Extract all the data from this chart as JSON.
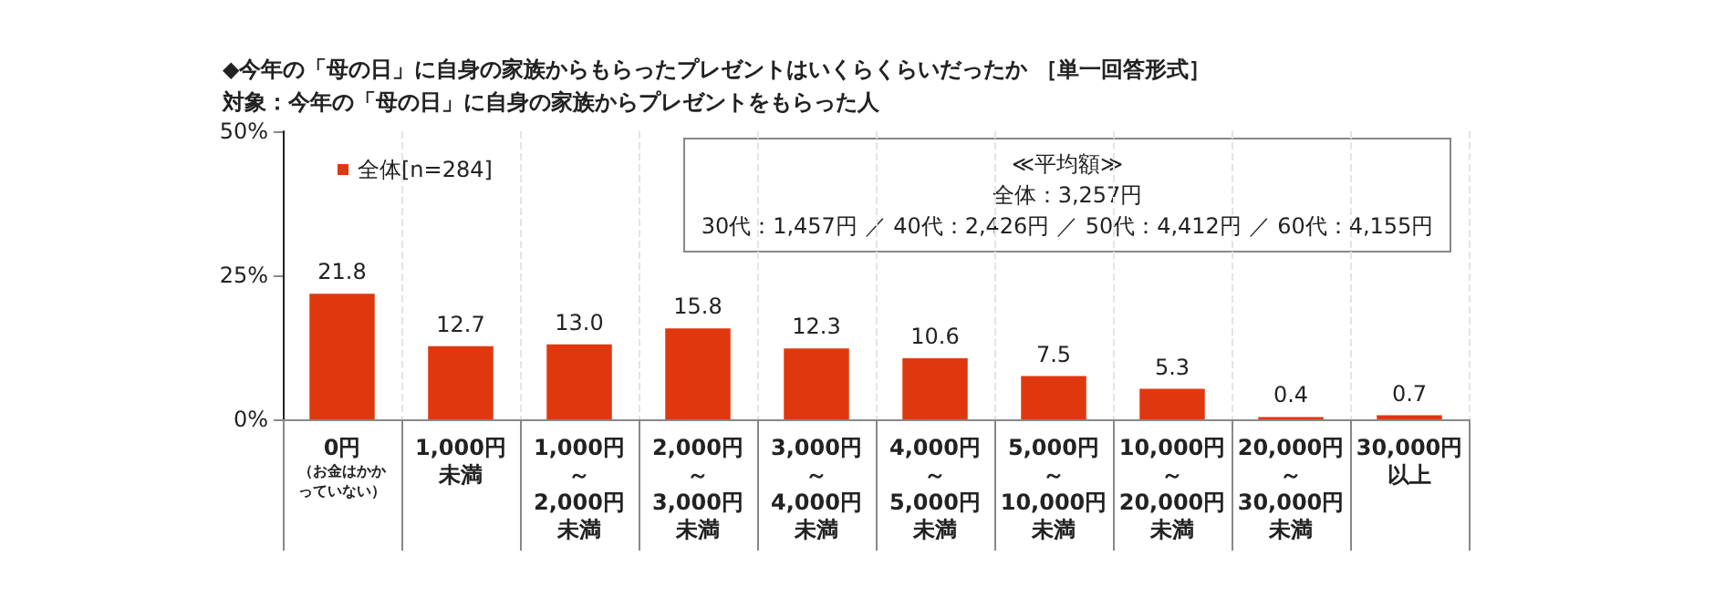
{
  "chart_data": {
    "type": "bar",
    "title": "◆今年の「母の日」に自身の家族からもらったプレゼントはいくらくらいだったか ［単一回答形式］",
    "subtitle": "対象：今年の「母の日」に自身の家族からプレゼントをもらった人",
    "categories": [
      "0円（お金はかかっていない）",
      "1,000円未満",
      "1,000円～2,000円未満",
      "2,000円～3,000円未満",
      "3,000円～4,000円未満",
      "4,000円～5,000円未満",
      "5,000円～10,000円未満",
      "10,000円～20,000円未満",
      "20,000円～30,000円未満",
      "30,000円以上"
    ],
    "series": [
      {
        "name": "全体[n=284]",
        "color": "#e0380e",
        "values": [
          21.8,
          12.7,
          13.0,
          15.8,
          12.3,
          10.6,
          7.5,
          5.3,
          0.4,
          0.7
        ],
        "value_labels": [
          "21.8",
          "12.7",
          "13.0",
          "15.8",
          "12.3",
          "10.6",
          "7.5",
          "5.3",
          "0.4",
          "0.7"
        ]
      }
    ],
    "ylim": [
      0,
      50
    ],
    "yticks": [
      {
        "value": 0,
        "label": "0%"
      },
      {
        "value": 25,
        "label": "25%"
      },
      {
        "value": 50,
        "label": "50%"
      }
    ],
    "grid": "x",
    "legend": "top left",
    "annotations": [
      "≪平均額≫",
      "全体：3,257円",
      "30代：1,457円 ／ 40代：2,426円 ／ 50代：4,412円 ／ 60代：4,155円"
    ]
  }
}
